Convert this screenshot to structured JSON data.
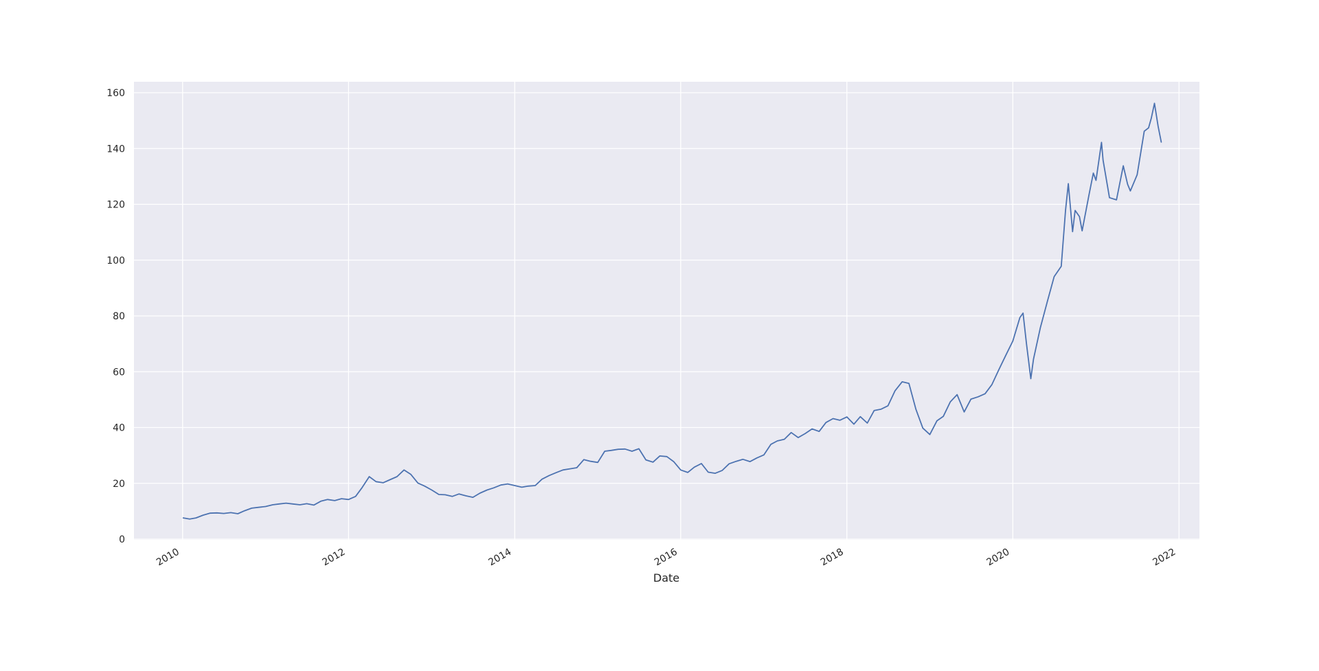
{
  "chart_data": {
    "type": "line",
    "title": "",
    "xlabel": "Date",
    "ylabel": "",
    "grid": true,
    "x_ticks": [
      "2010",
      "2012",
      "2014",
      "2016",
      "2018",
      "2020",
      "2022"
    ],
    "y_ticks": [
      "0",
      "20",
      "40",
      "60",
      "80",
      "100",
      "120",
      "140",
      "160"
    ],
    "xlim": [
      "2009-06-01",
      "2022-04-01"
    ],
    "ylim": [
      0,
      160
    ],
    "color": "#4c72b0",
    "series": [
      {
        "points": [
          [
            "2010-01-04",
            7.6
          ],
          [
            "2010-02-01",
            7.2
          ],
          [
            "2010-03-01",
            7.6
          ],
          [
            "2010-04-01",
            8.6
          ],
          [
            "2010-05-01",
            9.3
          ],
          [
            "2010-06-01",
            9.4
          ],
          [
            "2010-07-01",
            9.2
          ],
          [
            "2010-08-01",
            9.5
          ],
          [
            "2010-09-01",
            9.1
          ],
          [
            "2010-10-01",
            10.2
          ],
          [
            "2010-11-01",
            11.1
          ],
          [
            "2010-12-01",
            11.4
          ],
          [
            "2011-01-01",
            11.7
          ],
          [
            "2011-02-01",
            12.3
          ],
          [
            "2011-03-01",
            12.6
          ],
          [
            "2011-04-01",
            12.9
          ],
          [
            "2011-05-01",
            12.6
          ],
          [
            "2011-06-01",
            12.3
          ],
          [
            "2011-07-01",
            12.7
          ],
          [
            "2011-08-01",
            12.2
          ],
          [
            "2011-09-01",
            13.6
          ],
          [
            "2011-10-01",
            14.2
          ],
          [
            "2011-11-01",
            13.8
          ],
          [
            "2011-12-01",
            14.5
          ],
          [
            "2012-01-01",
            14.2
          ],
          [
            "2012-02-01",
            15.3
          ],
          [
            "2012-03-01",
            18.5
          ],
          [
            "2012-04-01",
            22.4
          ],
          [
            "2012-05-01",
            20.6
          ],
          [
            "2012-06-01",
            20.2
          ],
          [
            "2012-07-01",
            21.3
          ],
          [
            "2012-08-01",
            22.4
          ],
          [
            "2012-09-01",
            24.8
          ],
          [
            "2012-10-01",
            23.2
          ],
          [
            "2012-11-01",
            20.1
          ],
          [
            "2012-12-01",
            19.0
          ],
          [
            "2013-01-01",
            17.6
          ],
          [
            "2013-02-01",
            16.0
          ],
          [
            "2013-03-01",
            15.9
          ],
          [
            "2013-04-01",
            15.3
          ],
          [
            "2013-05-01",
            16.2
          ],
          [
            "2013-06-01",
            15.5
          ],
          [
            "2013-07-01",
            15.0
          ],
          [
            "2013-08-01",
            16.5
          ],
          [
            "2013-09-01",
            17.6
          ],
          [
            "2013-10-01",
            18.4
          ],
          [
            "2013-11-01",
            19.4
          ],
          [
            "2013-12-01",
            19.8
          ],
          [
            "2014-01-01",
            19.2
          ],
          [
            "2014-02-01",
            18.6
          ],
          [
            "2014-03-01",
            19.0
          ],
          [
            "2014-04-01",
            19.2
          ],
          [
            "2014-05-01",
            21.5
          ],
          [
            "2014-06-01",
            22.8
          ],
          [
            "2014-07-01",
            23.8
          ],
          [
            "2014-08-01",
            24.8
          ],
          [
            "2014-09-01",
            25.2
          ],
          [
            "2014-10-01",
            25.6
          ],
          [
            "2014-11-01",
            28.5
          ],
          [
            "2014-12-01",
            27.9
          ],
          [
            "2015-01-01",
            27.5
          ],
          [
            "2015-02-01",
            31.5
          ],
          [
            "2015-03-01",
            31.8
          ],
          [
            "2015-04-01",
            32.2
          ],
          [
            "2015-05-01",
            32.3
          ],
          [
            "2015-06-01",
            31.5
          ],
          [
            "2015-07-01",
            32.4
          ],
          [
            "2015-08-01",
            28.4
          ],
          [
            "2015-09-01",
            27.6
          ],
          [
            "2015-10-01",
            29.8
          ],
          [
            "2015-11-01",
            29.6
          ],
          [
            "2015-12-01",
            27.8
          ],
          [
            "2016-01-01",
            24.8
          ],
          [
            "2016-02-01",
            23.9
          ],
          [
            "2016-03-01",
            25.8
          ],
          [
            "2016-04-01",
            27.1
          ],
          [
            "2016-05-01",
            24.0
          ],
          [
            "2016-06-01",
            23.6
          ],
          [
            "2016-07-01",
            24.6
          ],
          [
            "2016-08-01",
            27.0
          ],
          [
            "2016-09-01",
            27.9
          ],
          [
            "2016-10-01",
            28.6
          ],
          [
            "2016-11-01",
            27.8
          ],
          [
            "2016-12-01",
            29.1
          ],
          [
            "2017-01-01",
            30.2
          ],
          [
            "2017-02-01",
            34.0
          ],
          [
            "2017-03-01",
            35.2
          ],
          [
            "2017-04-01",
            35.8
          ],
          [
            "2017-05-01",
            38.2
          ],
          [
            "2017-06-01",
            36.4
          ],
          [
            "2017-07-01",
            37.8
          ],
          [
            "2017-08-01",
            39.5
          ],
          [
            "2017-09-01",
            38.6
          ],
          [
            "2017-10-01",
            41.8
          ],
          [
            "2017-11-01",
            43.2
          ],
          [
            "2017-12-01",
            42.6
          ],
          [
            "2018-01-01",
            43.8
          ],
          [
            "2018-02-01",
            41.2
          ],
          [
            "2018-03-01",
            43.9
          ],
          [
            "2018-04-01",
            41.6
          ],
          [
            "2018-05-01",
            46.1
          ],
          [
            "2018-06-01",
            46.6
          ],
          [
            "2018-07-01",
            47.8
          ],
          [
            "2018-08-01",
            53.2
          ],
          [
            "2018-09-01",
            56.4
          ],
          [
            "2018-10-01",
            55.8
          ],
          [
            "2018-11-01",
            46.5
          ],
          [
            "2018-12-01",
            39.8
          ],
          [
            "2019-01-01",
            37.5
          ],
          [
            "2019-02-01",
            42.4
          ],
          [
            "2019-03-01",
            44.0
          ],
          [
            "2019-04-01",
            49.2
          ],
          [
            "2019-05-01",
            51.8
          ],
          [
            "2019-06-01",
            45.6
          ],
          [
            "2019-07-01",
            50.2
          ],
          [
            "2019-08-01",
            51.0
          ],
          [
            "2019-09-01",
            52.1
          ],
          [
            "2019-10-01",
            55.4
          ],
          [
            "2019-11-01",
            60.8
          ],
          [
            "2019-12-01",
            65.9
          ],
          [
            "2020-01-01",
            71.0
          ],
          [
            "2020-02-01",
            79.4
          ],
          [
            "2020-02-15",
            81.0
          ],
          [
            "2020-03-01",
            70.0
          ],
          [
            "2020-03-20",
            57.5
          ],
          [
            "2020-04-01",
            64.5
          ],
          [
            "2020-05-01",
            75.8
          ],
          [
            "2020-06-01",
            85.2
          ],
          [
            "2020-07-01",
            94.1
          ],
          [
            "2020-08-01",
            97.8
          ],
          [
            "2020-08-20",
            118.0
          ],
          [
            "2020-09-01",
            127.4
          ],
          [
            "2020-09-20",
            110.2
          ],
          [
            "2020-10-01",
            117.8
          ],
          [
            "2020-10-20",
            115.6
          ],
          [
            "2020-11-01",
            110.5
          ],
          [
            "2020-12-01",
            123.4
          ],
          [
            "2020-12-20",
            131.2
          ],
          [
            "2021-01-01",
            128.6
          ],
          [
            "2021-01-25",
            142.2
          ],
          [
            "2021-02-01",
            135.8
          ],
          [
            "2021-03-01",
            122.4
          ],
          [
            "2021-04-01",
            121.6
          ],
          [
            "2021-05-01",
            133.8
          ],
          [
            "2021-05-20",
            127.2
          ],
          [
            "2021-06-01",
            124.8
          ],
          [
            "2021-07-01",
            130.6
          ],
          [
            "2021-08-01",
            146.2
          ],
          [
            "2021-08-20",
            147.4
          ],
          [
            "2021-09-01",
            150.8
          ],
          [
            "2021-09-15",
            156.2
          ],
          [
            "2021-10-01",
            148.0
          ],
          [
            "2021-10-15",
            142.3
          ]
        ]
      }
    ]
  }
}
